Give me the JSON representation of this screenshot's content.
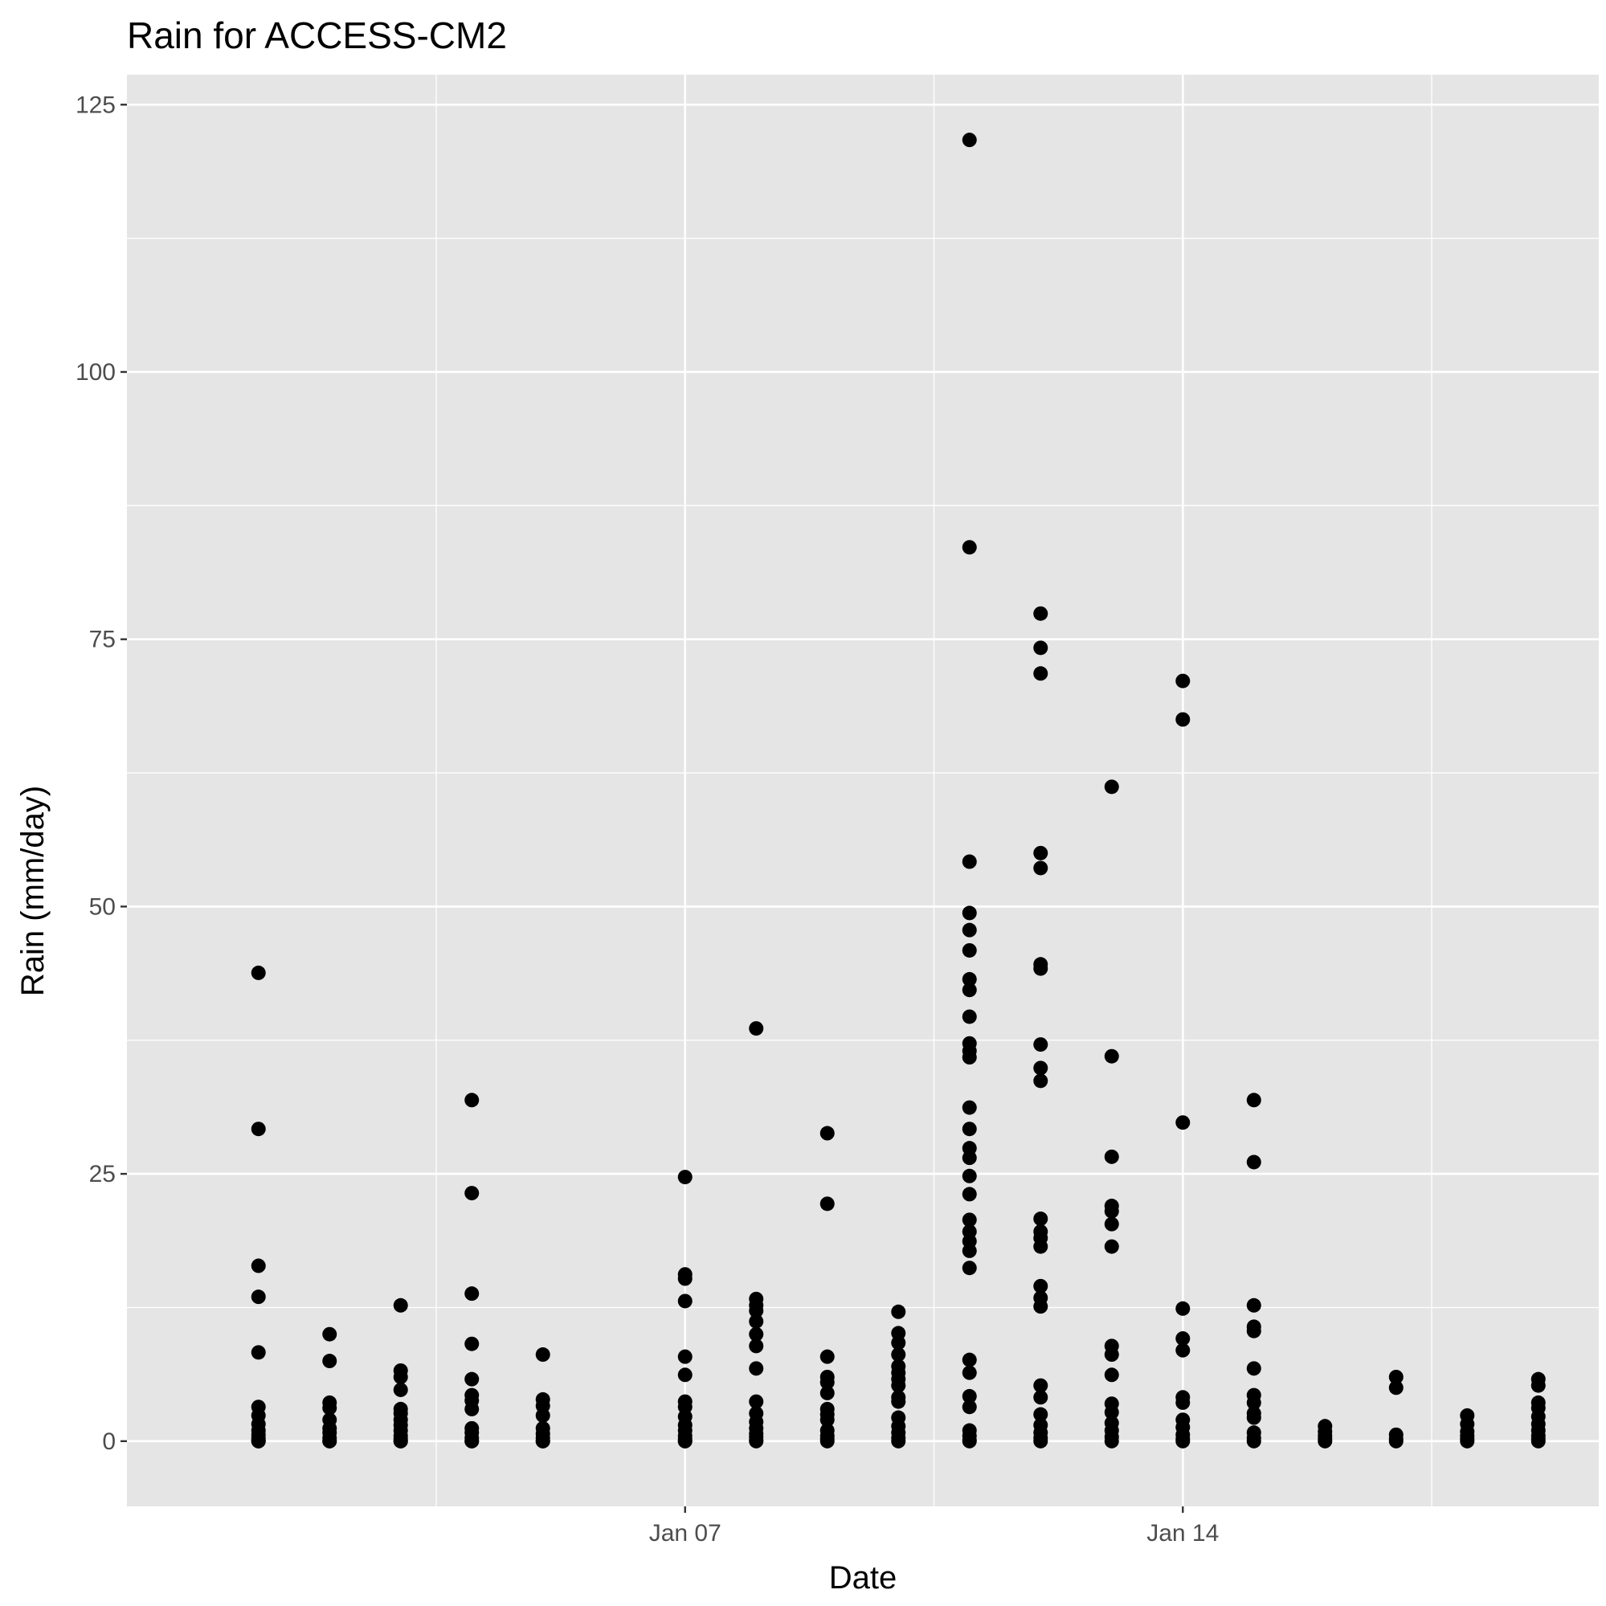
{
  "chart_data": {
    "type": "scatter",
    "title": "Rain for ACCESS-CM2",
    "xlabel": "Date",
    "ylabel": "Rain (mm/day)",
    "x_ticks": [
      {
        "date": "2021-01-07",
        "label": "Jan 07"
      },
      {
        "date": "2021-01-14",
        "label": "Jan 14"
      }
    ],
    "y_ticks": [
      0,
      25,
      50,
      75,
      100,
      125
    ],
    "xlim": [
      "2020-12-31",
      "2021-01-19"
    ],
    "ylim": [
      -6.1,
      127.8
    ],
    "grid": true,
    "panel_background": "#e5e5e5",
    "point_color": "#000000",
    "points": [
      {
        "date": "2021-01-01",
        "y": [
          43.8,
          29.2,
          16.4,
          13.5,
          8.3,
          3.2,
          2.4,
          1.6,
          1.0,
          0.6,
          0.3,
          0.1,
          0.0,
          0.0
        ]
      },
      {
        "date": "2021-01-02",
        "y": [
          10.0,
          7.5,
          3.6,
          3.1,
          2.0,
          1.2,
          0.8,
          0.3,
          0.0,
          0.0
        ]
      },
      {
        "date": "2021-01-03",
        "y": [
          12.7,
          6.6,
          6.0,
          4.8,
          3.0,
          2.6,
          2.0,
          1.5,
          1.0,
          0.5,
          0.2,
          0.0,
          0.0
        ]
      },
      {
        "date": "2021-01-04",
        "y": [
          31.9,
          23.2,
          13.8,
          9.1,
          5.8,
          4.3,
          3.8,
          3.0,
          1.2,
          0.8,
          0.3,
          0.0,
          0.0
        ]
      },
      {
        "date": "2021-01-05",
        "y": [
          8.1,
          3.9,
          3.3,
          2.4,
          1.2,
          0.7,
          0.3,
          0.0,
          0.0
        ]
      },
      {
        "date": "2021-01-07",
        "y": [
          24.7,
          15.6,
          15.2,
          13.1,
          7.9,
          6.2,
          3.7,
          3.2,
          2.3,
          1.5,
          1.0,
          0.5,
          0.2,
          0.0,
          0.0
        ]
      },
      {
        "date": "2021-01-08",
        "y": [
          38.6,
          13.3,
          12.7,
          12.2,
          11.2,
          10.0,
          8.9,
          6.8,
          3.7,
          2.6,
          1.8,
          1.2,
          0.7,
          0.4,
          0.1,
          0.0
        ]
      },
      {
        "date": "2021-01-09",
        "y": [
          28.8,
          22.2,
          7.9,
          6.0,
          5.5,
          4.5,
          3.0,
          2.5,
          2.0,
          1.0,
          0.5,
          0.2,
          0.0
        ]
      },
      {
        "date": "2021-01-10",
        "y": [
          12.1,
          10.1,
          9.2,
          8.1,
          7.0,
          6.4,
          5.8,
          5.2,
          4.1,
          3.7,
          2.2,
          1.4,
          0.8,
          0.3,
          0.0
        ]
      },
      {
        "date": "2021-01-11",
        "y": [
          121.7,
          83.6,
          54.2,
          49.4,
          47.8,
          45.9,
          43.2,
          42.2,
          39.7,
          37.2,
          36.5,
          35.9,
          31.2,
          29.2,
          27.4,
          26.5,
          24.8,
          23.1,
          20.7,
          19.6,
          18.7,
          17.8,
          16.2,
          7.6,
          6.4,
          4.2,
          3.2,
          1.0,
          0.5,
          0.1,
          0.0
        ]
      },
      {
        "date": "2021-01-12",
        "y": [
          77.4,
          74.2,
          71.8,
          55.0,
          53.6,
          44.6,
          44.2,
          37.1,
          34.9,
          33.7,
          20.8,
          19.6,
          19.0,
          18.2,
          14.5,
          13.4,
          12.6,
          5.2,
          4.1,
          2.5,
          1.5,
          0.8,
          0.3,
          0.0
        ]
      },
      {
        "date": "2021-01-13",
        "y": [
          61.2,
          36.0,
          26.6,
          22.0,
          21.5,
          20.3,
          18.2,
          8.9,
          8.1,
          6.2,
          3.5,
          2.7,
          1.7,
          1.0,
          0.4,
          0.0
        ]
      },
      {
        "date": "2021-01-14",
        "y": [
          71.1,
          67.5,
          29.8,
          12.4,
          9.6,
          8.5,
          4.1,
          3.6,
          2.0,
          1.3,
          0.6,
          0.2,
          0.0
        ]
      },
      {
        "date": "2021-01-15",
        "y": [
          31.9,
          26.1,
          12.7,
          10.7,
          10.3,
          6.8,
          4.3,
          3.6,
          2.6,
          2.2,
          0.8,
          0.3,
          0.0
        ]
      },
      {
        "date": "2021-01-16",
        "y": [
          1.4,
          0.9,
          0.5,
          0.2,
          0.0
        ]
      },
      {
        "date": "2021-01-17",
        "y": [
          6.0,
          5.0,
          0.6,
          0.2,
          0.0
        ]
      },
      {
        "date": "2021-01-18",
        "y": [
          2.4,
          1.6,
          0.9,
          0.5,
          0.2,
          0.0
        ]
      },
      {
        "date": "2021-01-19",
        "y": [
          5.8,
          5.2,
          3.6,
          3.1,
          2.3,
          1.6,
          1.0,
          0.5,
          0.2,
          0.0
        ]
      }
    ]
  }
}
